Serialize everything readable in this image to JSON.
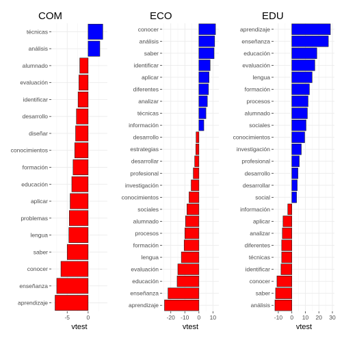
{
  "chart_data": [
    {
      "type": "bar",
      "orientation": "horizontal",
      "title": "COM",
      "xlabel": "vtest",
      "xlim": [
        -8.8,
        4.6
      ],
      "xticks": [
        -5,
        0
      ],
      "categories": [
        "técnicas",
        "análisis",
        "alumnado",
        "evaluación",
        "identificar",
        "desarrollo",
        "diseñar",
        "conocimientos",
        "formación",
        "educación",
        "aplicar",
        "problemas",
        "lengua",
        "saber",
        "conocer",
        "enseñanza",
        "aprendizaje"
      ],
      "values": [
        3.5,
        2.8,
        -2.0,
        -2.2,
        -2.4,
        -2.8,
        -3.0,
        -3.2,
        -3.6,
        -3.9,
        -4.3,
        -4.5,
        -4.6,
        -5.0,
        -6.5,
        -7.5,
        -7.9
      ]
    },
    {
      "type": "bar",
      "orientation": "horizontal",
      "title": "ECO",
      "xlabel": "vtest",
      "xlim": [
        -26.2,
        14.2
      ],
      "xticks": [
        -20,
        -10,
        0,
        10
      ],
      "categories": [
        "conocer",
        "análisis",
        "saber",
        "identificar",
        "aplicar",
        "diferentes",
        "analizar",
        "técnicas",
        "información",
        "desarrollo",
        "estrategias",
        "desarrollar",
        "profesional",
        "investigación",
        "conocimientos",
        "sociales",
        "alumnado",
        "procesos",
        "formación",
        "lengua",
        "evaluación",
        "educación",
        "enseñanza",
        "aprendizaje"
      ],
      "values": [
        11.8,
        11.2,
        10.8,
        8.0,
        7.2,
        6.8,
        6.0,
        5.0,
        3.5,
        -2.0,
        -2.2,
        -3.0,
        -4.0,
        -5.5,
        -7.0,
        -8.5,
        -9.5,
        -10.0,
        -10.5,
        -12.5,
        -15.0,
        -15.5,
        -22.0,
        -24.5
      ]
    },
    {
      "type": "bar",
      "orientation": "horizontal",
      "title": "EDU",
      "xlabel": "vtest",
      "xlim": [
        -13.5,
        31.5
      ],
      "xticks": [
        -10,
        0,
        10,
        20,
        30
      ],
      "categories": [
        "aprendizaje",
        "enseñanza",
        "educación",
        "evaluación",
        "lengua",
        "formación",
        "procesos",
        "alumnado",
        "sociales",
        "conocimientos",
        "investigación",
        "profesional",
        "desarrollo",
        "desarrollar",
        "social",
        "información",
        "aplicar",
        "analizar",
        "diferentes",
        "técnicas",
        "identificar",
        "conocer",
        "saber",
        "análisis"
      ],
      "values": [
        28.5,
        27.0,
        18.5,
        17.0,
        15.0,
        13.0,
        12.0,
        11.5,
        10.5,
        9.5,
        7.0,
        5.5,
        4.5,
        4.0,
        3.5,
        -3.0,
        -6.5,
        -7.0,
        -7.5,
        -7.5,
        -8.0,
        -11.0,
        -12.0,
        -12.5
      ]
    }
  ],
  "colors": {
    "positive": "#0000ff",
    "negative": "#ff0000"
  }
}
